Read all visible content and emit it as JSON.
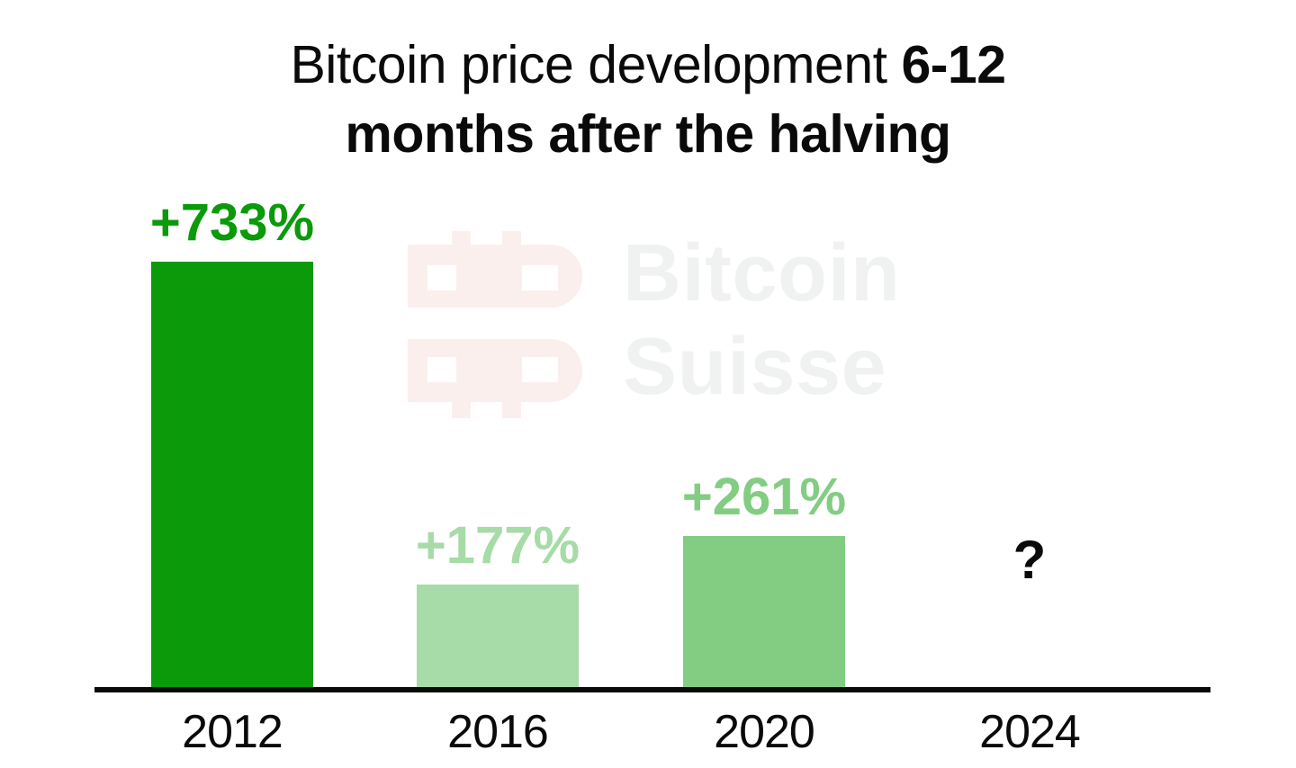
{
  "title": {
    "line1_regular": "Bitcoin price development ",
    "line1_bold": "6-12",
    "line2_bold": "months after the halving"
  },
  "watermark": {
    "brand_line1": "Bitcoin",
    "brand_line2": "Suisse",
    "logo_color": "#FBEFEE",
    "text_color": "#F0F2F1"
  },
  "chart_data": {
    "type": "bar",
    "title": "Bitcoin price development 6-12 months after the halving",
    "categories": [
      "2012",
      "2016",
      "2020",
      "2024"
    ],
    "values": [
      733,
      177,
      261,
      null
    ],
    "bar_labels": [
      "+733%",
      "+177%",
      "+261%",
      "?"
    ],
    "value_suffix": "%",
    "bar_colors": [
      "#0A9A0A",
      "#A7DBA7",
      "#82CD82",
      null
    ],
    "unknown_label_color": "#0A0A0A",
    "xlabel": "",
    "ylabel": "",
    "ylim": [
      0,
      780
    ],
    "grid": false,
    "legend": false,
    "axis_color": "#0A0A0A",
    "text_color": "#0A0A0A",
    "background_color": "#FFFFFF"
  }
}
